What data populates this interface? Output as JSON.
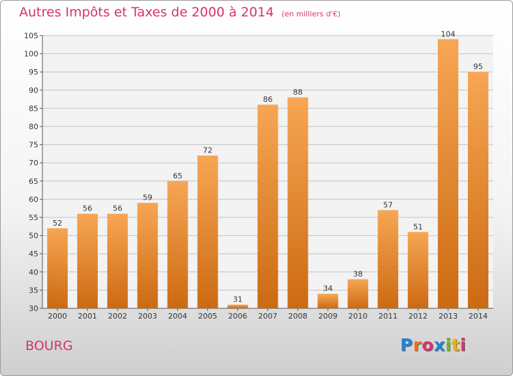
{
  "header": {
    "title": "Autres Impôts et Taxes de 2000 à 2014",
    "unit": "(en milliers d'€)"
  },
  "footer": {
    "commune": "BOURG",
    "logo": "Proxiti",
    "logo_colors": [
      "#2a7fd4",
      "#e8731a",
      "#d6336a",
      "#2a7fd4",
      "#74b32b",
      "#e8b10c",
      "#d6336a"
    ]
  },
  "colors": {
    "title": "#d6336a",
    "bar_top": "#f7a654",
    "bar_bottom": "#cc6a12",
    "grid": "#c2c2c2"
  },
  "chart_data": {
    "type": "bar",
    "title": "Autres Impôts et Taxes de 2000 à 2014",
    "subtitle": "(en milliers d'€)",
    "xlabel": "",
    "ylabel": "",
    "categories": [
      "2000",
      "2001",
      "2002",
      "2003",
      "2004",
      "2005",
      "2006",
      "2007",
      "2008",
      "2009",
      "2010",
      "2011",
      "2012",
      "2013",
      "2014"
    ],
    "values": [
      52,
      56,
      56,
      59,
      65,
      72,
      31,
      86,
      88,
      34,
      38,
      57,
      51,
      104,
      95
    ],
    "ylim": [
      30,
      105
    ],
    "yticks": [
      30,
      35,
      40,
      45,
      50,
      55,
      60,
      65,
      70,
      75,
      80,
      85,
      90,
      95,
      100,
      105
    ],
    "grid": true,
    "legend": "none",
    "data_labels": true
  }
}
